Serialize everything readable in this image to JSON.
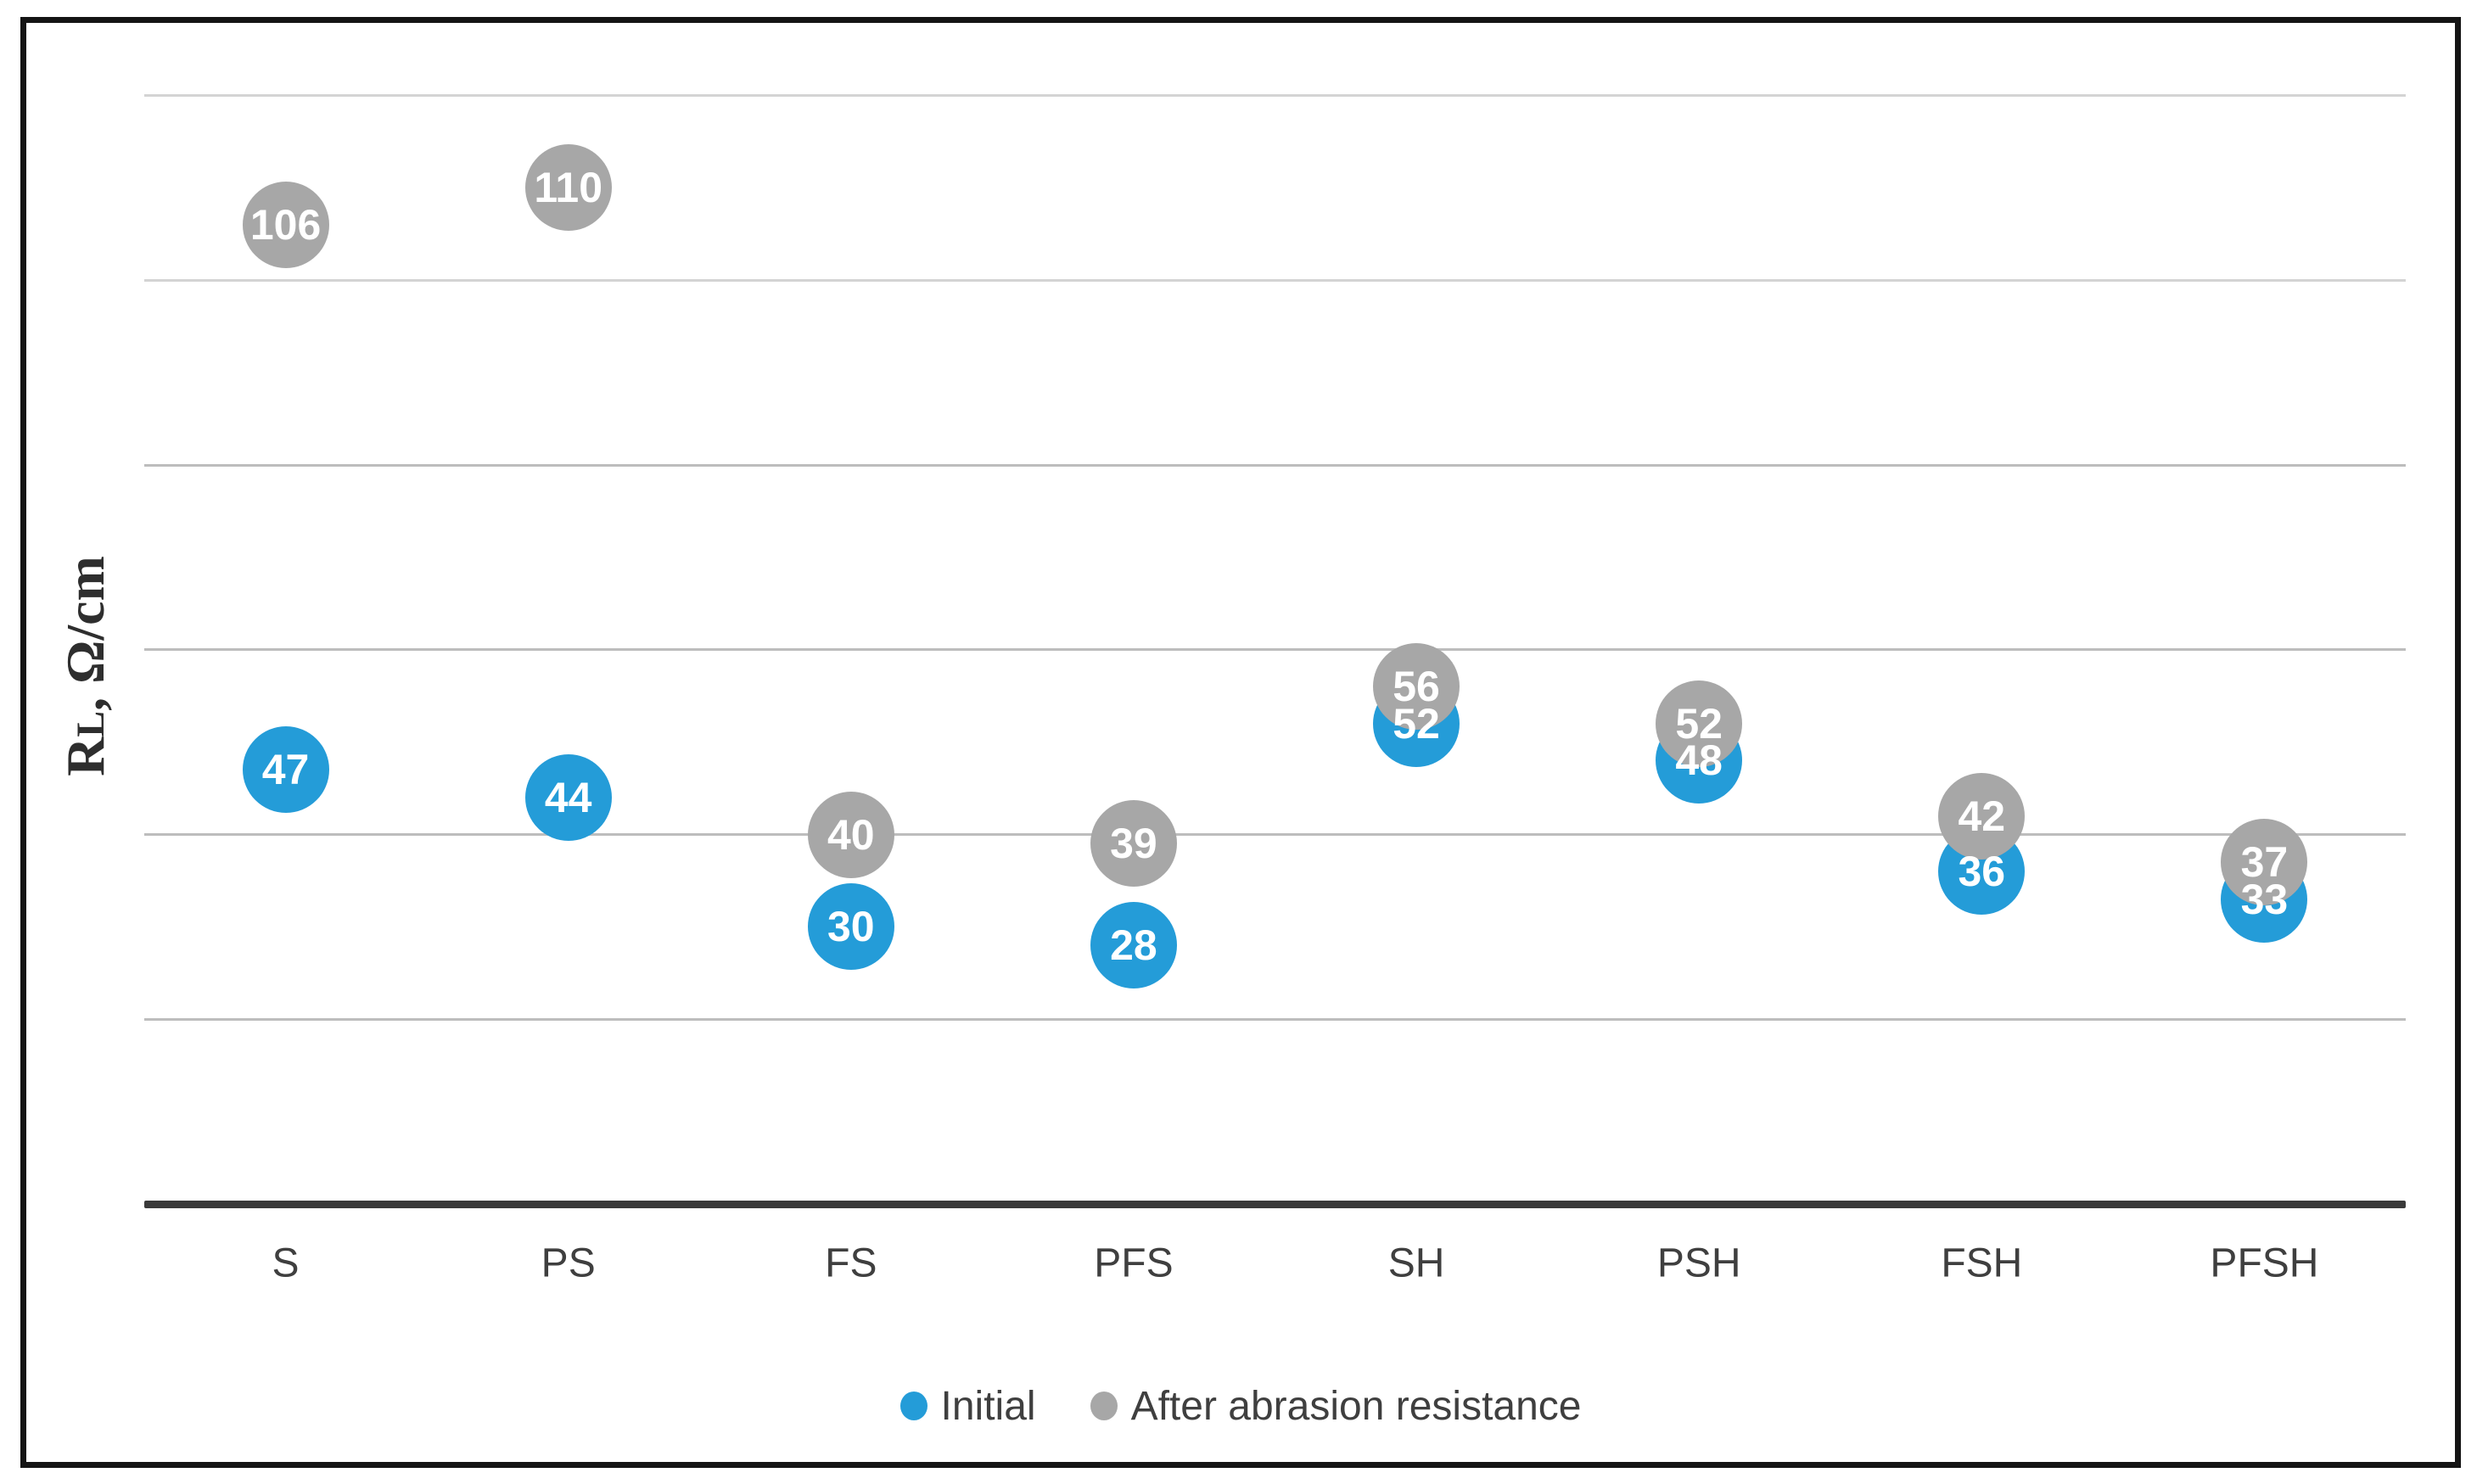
{
  "chart_data": {
    "type": "scatter",
    "subtype": "bubble-labeled",
    "ylabel": "RL, Ω/cm",
    "ylabel_parts": {
      "r": "R",
      "l": "L",
      "unit": ", Ω/cm"
    },
    "categories": [
      "S",
      "PS",
      "FS",
      "PFS",
      "SH",
      "PSH",
      "FSH",
      "PFSH"
    ],
    "series": [
      {
        "name": "Initial",
        "color": "#249CD8",
        "values": [
          47,
          44,
          30,
          28,
          52,
          48,
          36,
          33
        ]
      },
      {
        "name": "After abrasion resistance",
        "color": "#A7A7A7",
        "values": [
          106,
          110,
          40,
          39,
          56,
          52,
          42,
          37
        ]
      }
    ],
    "ylim": [
      0,
      120
    ],
    "gridline_step": 20,
    "grid": true,
    "y_tick_labels_visible": false,
    "legend_position": "bottom-center",
    "colors": {
      "gridline": "#BDBDBD",
      "axis_line": "#3A3A3A",
      "frame_border": "#141414",
      "category_label": "#3F3F3F",
      "legend_text": "#3F3F3F",
      "data_label_text": "#FFFFFF"
    }
  }
}
